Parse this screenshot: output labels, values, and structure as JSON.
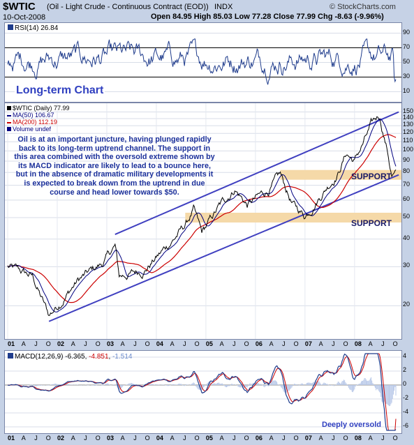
{
  "header": {
    "symbol": "$WTIC",
    "description": "(Oil - Light Crude - Continuous Contract (EOD))",
    "exchange": "INDX",
    "watermark": "© StockCharts.com",
    "date": "10-Oct-2008",
    "ohlc": "Open 84.95  High 85.03  Low 77.28  Close 77.99  Chg -8.63 (-9.96%)",
    "ohlc_chg_color": "#cc0000"
  },
  "rsi_panel": {
    "label": "RSI(14) 26.84",
    "ticks": [
      "90",
      "70",
      "50",
      "30",
      "10"
    ],
    "overlay_title": "Long-term Chart"
  },
  "price_panel": {
    "legend": [
      "$WTIC (Daily) 77.99",
      "MA(50) 106.67",
      "MA(200) 112.19",
      "Volume undef"
    ],
    "legend_colors": [
      "#000000",
      "#000080",
      "#cc0000",
      "#000080"
    ],
    "commentary": "Oil is at an important juncture, having plunged rapidly back to its long-term uptrend channel. The support in this area combined with the oversold extreme shown by its MACD indicator are likely to lead to a bounce here, but in the absence of dramatic military developments it is expected to break down from the uptrend in due course and head lower towards $50.",
    "support_label_upper": "SUPPORT",
    "support_label_lower": "SUPPORT",
    "y_ticks": [
      "150",
      "140",
      "130",
      "120",
      "110",
      "100",
      "90",
      "80",
      "70",
      "60",
      "50",
      "40",
      "30",
      "20"
    ]
  },
  "x_axis": {
    "labels": [
      "01",
      "A",
      "J",
      "O",
      "02",
      "A",
      "J",
      "O",
      "03",
      "A",
      "J",
      "O",
      "04",
      "A",
      "J",
      "O",
      "05",
      "A",
      "J",
      "O",
      "06",
      "A",
      "J",
      "O",
      "07",
      "A",
      "J",
      "O",
      "08",
      "A",
      "J",
      "O"
    ]
  },
  "macd_panel": {
    "label_prefix": "MACD(12,26,9)",
    "macd_value": "-6.365",
    "signal_value": "-4.851",
    "hist_value": "-1.514",
    "ticks": [
      "4",
      "2",
      "0",
      "-2",
      "-4",
      "-6"
    ],
    "note": "Deeply oversold"
  },
  "colors": {
    "price_line": "#000000",
    "ma50": "#000080",
    "ma200": "#cc0000",
    "channel": "#4040c0",
    "support_band": "#f5d9a8",
    "rsi_line": "#1f3c8c",
    "macd_line": "#1f3c8c",
    "signal_line": "#cc0000",
    "commentary_text": "#1a2f9a"
  },
  "chart_data": {
    "type": "line",
    "title": "$WTIC (Oil - Light Crude - Continuous Contract (EOD))",
    "scale": "log",
    "ylim": [
      15,
      155
    ],
    "x_labels": [
      "01",
      "02",
      "03",
      "04",
      "05",
      "06",
      "07",
      "08"
    ],
    "series": [
      {
        "name": "$WTIC (Daily)",
        "x": [
          "2001-01",
          "2001-07",
          "2001-11",
          "2002-01",
          "2002-06",
          "2002-12",
          "2003-03",
          "2003-04",
          "2003-10",
          "2004-03",
          "2004-08",
          "2004-10",
          "2004-12",
          "2005-04",
          "2005-08",
          "2005-11",
          "2006-04",
          "2006-07",
          "2006-10",
          "2007-01",
          "2007-06",
          "2007-09",
          "2007-11",
          "2008-01",
          "2008-05",
          "2008-07",
          "2008-09",
          "2008-10"
        ],
        "values": [
          30,
          27,
          18,
          20,
          26,
          31,
          37,
          27,
          29,
          36,
          46,
          54,
          42,
          55,
          68,
          57,
          66,
          77,
          57,
          51,
          68,
          80,
          98,
          90,
          128,
          145,
          100,
          78
        ]
      },
      {
        "name": "MA(50)",
        "last_value": 106.67
      },
      {
        "name": "MA(200)",
        "last_value": 112.19
      }
    ],
    "channel": {
      "upper": "2003-03 to 2008-10",
      "lower": "2001-11 to 2008-10"
    },
    "support_levels": [
      78,
      50
    ],
    "rsi": {
      "value": 26.84,
      "ylim": [
        0,
        100
      ],
      "levels": [
        30,
        70
      ]
    },
    "macd": {
      "macd": -6.365,
      "signal": -4.851,
      "histogram": -1.514,
      "ylim": [
        -6.5,
        4.5
      ]
    }
  }
}
